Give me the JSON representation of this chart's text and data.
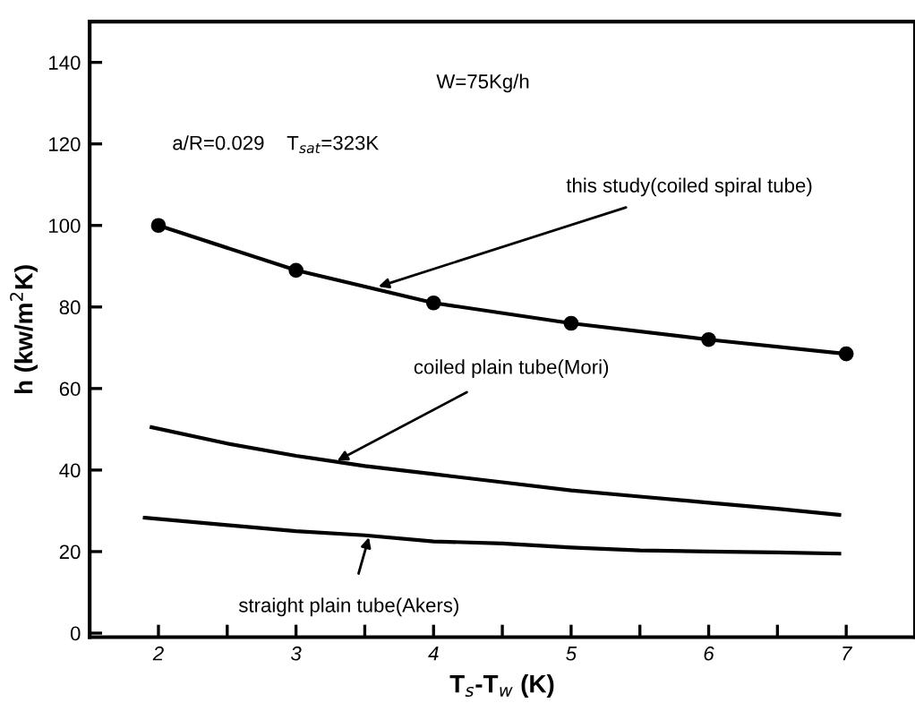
{
  "chart_data": {
    "type": "line",
    "xlabel": "T$_{s}$-T$_{w}$ (K)",
    "ylabel": "h (kw/m$^{2}$K)",
    "xlim": [
      1.5,
      7.5
    ],
    "ylim": [
      -1,
      150
    ],
    "xticks": [
      2,
      {
        "value": 2.5,
        "label": null
      },
      3,
      {
        "value": 3.5,
        "label": null
      },
      4,
      {
        "value": 4.5,
        "label": null
      },
      5,
      {
        "value": 5.5,
        "label": null
      },
      6,
      {
        "value": 6.5,
        "label": null
      },
      7
    ],
    "yticks": [
      0,
      20,
      40,
      60,
      80,
      100,
      120,
      140
    ],
    "grid": false,
    "legend": false,
    "series": [
      {
        "color": "#000000",
        "marker": "circle",
        "x": [
          2,
          3,
          4,
          5,
          6,
          7
        ],
        "values": [
          100,
          89,
          81,
          76,
          72,
          68.5
        ]
      },
      {
        "color": "#000000",
        "marker": "none",
        "x": [
          1.95,
          2.5,
          3,
          3.5,
          4,
          4.5,
          5,
          5.5,
          6,
          6.5,
          6.95
        ],
        "values": [
          50.5,
          46.5,
          43.5,
          41,
          39,
          37,
          35,
          33.5,
          32,
          30.5,
          29
        ]
      },
      {
        "color": "#000000",
        "marker": "none",
        "x": [
          1.9,
          2.5,
          3,
          3.5,
          4,
          4.5,
          5,
          5.5,
          6,
          6.5,
          6.95
        ],
        "values": [
          28.3,
          26.5,
          25,
          24,
          22.5,
          22,
          21,
          20.3,
          20,
          19.8,
          19.5
        ]
      }
    ],
    "annotations": [
      "W=75Kg/h",
      "a/R=0.029    T$_{sat}$=323K",
      {
        "text": "this study(coiled spiral tube)",
        "x": 3.6,
        "y": 85
      },
      {
        "text": "coiled plain tube(Mori)",
        "x": 3.3,
        "y": 42.3
      },
      {
        "text": "straight plain tube(Akers)",
        "x": 3.53,
        "y": 23.5
      }
    ]
  }
}
